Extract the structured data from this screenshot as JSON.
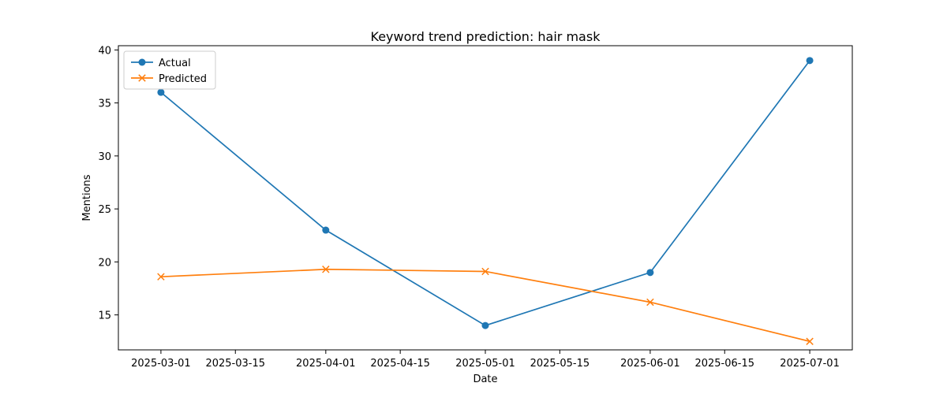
{
  "chart_data": {
    "type": "line",
    "title": "Keyword trend prediction: hair mask",
    "xlabel": "Date",
    "ylabel": "Mentions",
    "x_ticks": [
      "2025-03-01",
      "2025-03-15",
      "2025-04-01",
      "2025-04-15",
      "2025-05-01",
      "2025-05-15",
      "2025-06-01",
      "2025-06-15",
      "2025-07-01"
    ],
    "y_ticks": [
      15,
      20,
      25,
      30,
      35,
      40
    ],
    "x_range": [
      "2025-02-21",
      "2025-07-09"
    ],
    "ylim": [
      11.7,
      40.4
    ],
    "legend_position": "top-left",
    "grid": false,
    "x": [
      "2025-03-01",
      "2025-04-01",
      "2025-05-01",
      "2025-06-01",
      "2025-07-01"
    ],
    "series": [
      {
        "name": "Actual",
        "color": "#1f77b4",
        "marker": "circle",
        "values": [
          36,
          23,
          14,
          19,
          39
        ]
      },
      {
        "name": "Predicted",
        "color": "#ff7f0e",
        "marker": "x",
        "values": [
          18.6,
          19.3,
          19.1,
          16.2,
          12.5
        ]
      }
    ]
  }
}
